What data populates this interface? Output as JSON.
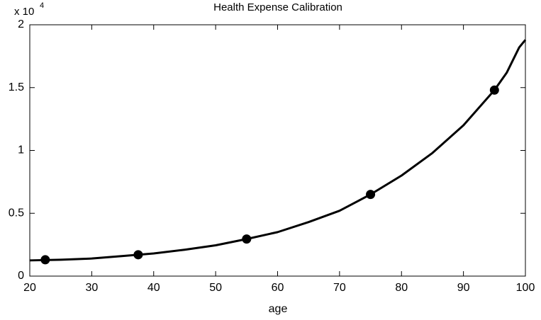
{
  "chart_data": {
    "type": "line",
    "title": "Health Expense Calibration",
    "xlabel": "age",
    "y_multiplier": {
      "base": "x 10",
      "exponent": "4"
    },
    "x": [
      20,
      25,
      30,
      35,
      40,
      45,
      50,
      55,
      60,
      65,
      70,
      75,
      80,
      85,
      90,
      95,
      97,
      98,
      99,
      100
    ],
    "values": [
      0.125,
      0.13,
      0.14,
      0.16,
      0.18,
      0.21,
      0.245,
      0.295,
      0.35,
      0.43,
      0.52,
      0.65,
      0.8,
      0.98,
      1.2,
      1.48,
      1.62,
      1.72,
      1.82,
      1.88
    ],
    "color": "#000000",
    "points": {
      "type": "scatter",
      "x": [
        22.5,
        37.5,
        55,
        75,
        95
      ],
      "values": [
        0.13,
        0.17,
        0.295,
        0.65,
        1.48
      ],
      "color": "#000000"
    },
    "xlim": [
      20,
      100
    ],
    "xticks": [
      20,
      30,
      40,
      50,
      60,
      70,
      80,
      90,
      100
    ],
    "ylim": [
      0,
      2
    ],
    "yticks": [
      0,
      0.5,
      1,
      1.5,
      2
    ],
    "grid": false
  }
}
